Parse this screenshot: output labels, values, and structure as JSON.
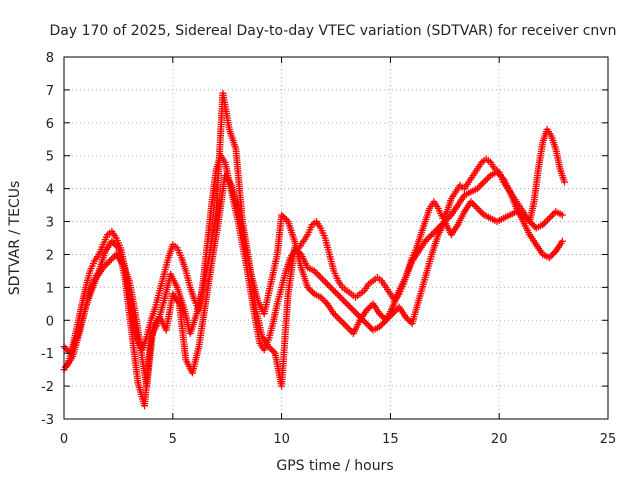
{
  "chart_data": {
    "type": "scatter",
    "title": "Day 170 of 2025, Sidereal Day-to-day VTEC variation (SDTVAR) for receiver cnvn",
    "xlabel": "GPS time / hours",
    "ylabel": "SDTVAR / TECUs",
    "xlim": [
      0,
      25
    ],
    "ylim": [
      -3,
      8
    ],
    "xticks": [
      "0",
      "5",
      "10",
      "15",
      "20",
      "25"
    ],
    "yticks": [
      "-3",
      "-2",
      "-1",
      "0",
      "1",
      "2",
      "3",
      "4",
      "5",
      "6",
      "7",
      "8"
    ],
    "grid": true,
    "marker": "plus",
    "color": "#ff0000",
    "series": [
      {
        "x": [
          0.0,
          0.2,
          0.4,
          0.6,
          0.8,
          1.0,
          1.2,
          1.4,
          1.6,
          1.8,
          2.0,
          2.2,
          2.4,
          2.6,
          2.8,
          3.0,
          3.2,
          3.4,
          3.6,
          3.8,
          4.0,
          4.2,
          4.4,
          4.6,
          4.8,
          5.0,
          5.2,
          5.4,
          5.6,
          5.8,
          6.0,
          6.2,
          6.4,
          6.6,
          6.8,
          7.0,
          7.2,
          7.4,
          7.6,
          7.8,
          8.0,
          8.2,
          8.4,
          8.6,
          8.8,
          9.0,
          9.2,
          9.4,
          9.6,
          9.8,
          10.0,
          10.2,
          10.4,
          10.6,
          10.8,
          11.0,
          11.2,
          11.4,
          11.6,
          11.8,
          12.0,
          12.2,
          12.4,
          12.6,
          12.8,
          13.0,
          13.2,
          13.4,
          13.6,
          13.8,
          14.0,
          14.2,
          14.4,
          14.6,
          14.8,
          15.0,
          15.2,
          15.4,
          15.6,
          15.8,
          16.0,
          16.2,
          16.4,
          16.6,
          16.8,
          17.0,
          17.2,
          17.4,
          17.6,
          17.8,
          18.0,
          18.2,
          18.4,
          18.6,
          18.8,
          19.0,
          19.2,
          19.4,
          19.6,
          19.8,
          20.0,
          20.2,
          20.4,
          20.6,
          20.8,
          21.0,
          21.2,
          21.4,
          21.6,
          21.8,
          22.0,
          22.2,
          22.4,
          22.6,
          22.8,
          23.0
        ],
        "y": [
          -1.5,
          -1.3,
          -0.8,
          -0.2,
          0.4,
          1.0,
          1.5,
          1.8,
          2.0,
          2.3,
          2.6,
          2.7,
          2.5,
          2.2,
          1.6,
          0.8,
          0.0,
          -0.6,
          -0.9,
          -0.5,
          0.0,
          0.4,
          0.9,
          1.4,
          1.9,
          2.3,
          2.2,
          1.9,
          1.5,
          1.0,
          0.6,
          0.3,
          1.2,
          2.4,
          3.6,
          4.6,
          5.0,
          4.8,
          4.2,
          3.6,
          3.0,
          2.3,
          1.6,
          0.8,
          0.0,
          -0.7,
          -0.9,
          -0.6,
          -0.1,
          0.5,
          1.0,
          1.5,
          1.9,
          2.1,
          2.2,
          2.4,
          2.6,
          2.9,
          3.0,
          2.8,
          2.5,
          2.0,
          1.5,
          1.2,
          1.0,
          0.9,
          0.8,
          0.7,
          0.8,
          0.9,
          1.1,
          1.2,
          1.3,
          1.2,
          1.0,
          0.8,
          0.6,
          0.8,
          1.1,
          1.5,
          1.9,
          2.2,
          2.6,
          3.0,
          3.4,
          3.6,
          3.4,
          3.1,
          3.3,
          3.7,
          3.9,
          4.1,
          4.0,
          4.2,
          4.4,
          4.6,
          4.8,
          4.9,
          4.8,
          4.6,
          4.5,
          4.2,
          4.0,
          3.8,
          3.6,
          3.4,
          3.2,
          3.0,
          3.6,
          4.6,
          5.4,
          5.8,
          5.6,
          5.2,
          4.6,
          4.2
        ]
      },
      {
        "x": [
          0.0,
          0.3,
          0.6,
          0.9,
          1.2,
          1.5,
          1.8,
          2.1,
          2.4,
          2.7,
          3.0,
          3.2,
          3.4,
          3.6,
          3.8,
          4.1,
          4.4,
          4.7,
          5.0,
          5.3,
          5.6,
          5.9,
          6.2,
          6.5,
          6.8,
          7.1,
          7.4,
          7.7,
          8.0,
          8.3,
          8.6,
          8.9,
          9.2,
          9.5,
          9.8,
          10.0,
          10.3,
          10.6,
          10.9,
          11.2,
          11.5,
          11.8,
          12.1,
          12.4,
          12.7,
          13.0,
          13.3,
          13.6,
          13.9,
          14.2,
          14.5,
          14.8,
          15.1,
          15.4,
          15.7,
          16.0,
          16.3,
          16.6,
          16.9,
          17.2,
          17.5,
          17.8,
          18.1,
          18.4,
          18.7,
          19.0,
          19.3,
          19.6,
          19.9,
          20.2,
          20.5,
          20.8,
          21.1,
          21.4,
          21.7,
          22.0,
          22.3,
          22.6,
          22.9
        ],
        "y": [
          -0.8,
          -1.0,
          -0.5,
          0.2,
          0.8,
          1.3,
          1.6,
          1.8,
          2.0,
          1.7,
          1.2,
          0.5,
          -0.3,
          -1.2,
          -2.0,
          -0.2,
          0.1,
          -0.3,
          0.8,
          0.5,
          -1.2,
          -1.6,
          -0.8,
          0.5,
          1.8,
          3.0,
          4.4,
          4.1,
          3.3,
          2.4,
          1.4,
          0.6,
          0.2,
          1.1,
          2.0,
          3.2,
          3.0,
          2.4,
          1.6,
          1.0,
          0.8,
          0.7,
          0.5,
          0.2,
          0.0,
          -0.2,
          -0.4,
          0.0,
          0.3,
          0.5,
          0.2,
          0.0,
          0.4,
          0.9,
          1.3,
          1.8,
          2.1,
          2.4,
          2.6,
          2.8,
          3.0,
          3.2,
          3.5,
          3.8,
          3.9,
          4.0,
          4.2,
          4.4,
          4.5,
          4.3,
          3.9,
          3.4,
          3.0,
          2.6,
          2.3,
          2.0,
          1.9,
          2.1,
          2.4
        ]
      },
      {
        "x": [
          0.1,
          0.4,
          0.7,
          1.0,
          1.3,
          1.6,
          1.9,
          2.2,
          2.5,
          2.8,
          3.1,
          3.4,
          3.7,
          4.0,
          4.3,
          4.6,
          4.9,
          5.2,
          5.5,
          5.8,
          6.1,
          6.4,
          6.7,
          7.0,
          7.3,
          7.6,
          7.9,
          8.2,
          8.5,
          8.8,
          9.1,
          9.4,
          9.7,
          10.0,
          10.3,
          10.6,
          10.9,
          11.2,
          11.5,
          11.8,
          12.1,
          12.4,
          12.7,
          13.0,
          13.3,
          13.6,
          13.9,
          14.2,
          14.5,
          14.8,
          15.1,
          15.4,
          15.7,
          16.0,
          16.3,
          16.6,
          16.9,
          17.2,
          17.5,
          17.8,
          18.1,
          18.4,
          18.7,
          19.0,
          19.3,
          19.6,
          19.9,
          20.2,
          20.5,
          20.8,
          21.1,
          21.4,
          21.7,
          22.0,
          22.3,
          22.6,
          22.9
        ],
        "y": [
          -1.4,
          -1.1,
          -0.4,
          0.4,
          1.1,
          1.5,
          2.1,
          2.4,
          2.2,
          1.3,
          -0.3,
          -1.9,
          -2.6,
          -0.5,
          -0.1,
          0.6,
          1.4,
          1.0,
          0.4,
          -0.4,
          0.2,
          1.0,
          2.0,
          3.3,
          6.9,
          5.8,
          5.2,
          3.0,
          1.8,
          0.4,
          -0.5,
          -0.8,
          -1.0,
          -2.0,
          0.8,
          2.2,
          2.0,
          1.6,
          1.5,
          1.3,
          1.1,
          0.9,
          0.7,
          0.5,
          0.3,
          0.1,
          -0.1,
          -0.3,
          -0.2,
          0.0,
          0.2,
          0.4,
          0.1,
          -0.1,
          0.6,
          1.3,
          2.0,
          2.6,
          3.0,
          2.6,
          2.9,
          3.3,
          3.6,
          3.4,
          3.2,
          3.1,
          3.0,
          3.1,
          3.2,
          3.3,
          3.2,
          3.0,
          2.8,
          2.9,
          3.1,
          3.3,
          3.2
        ]
      }
    ]
  }
}
